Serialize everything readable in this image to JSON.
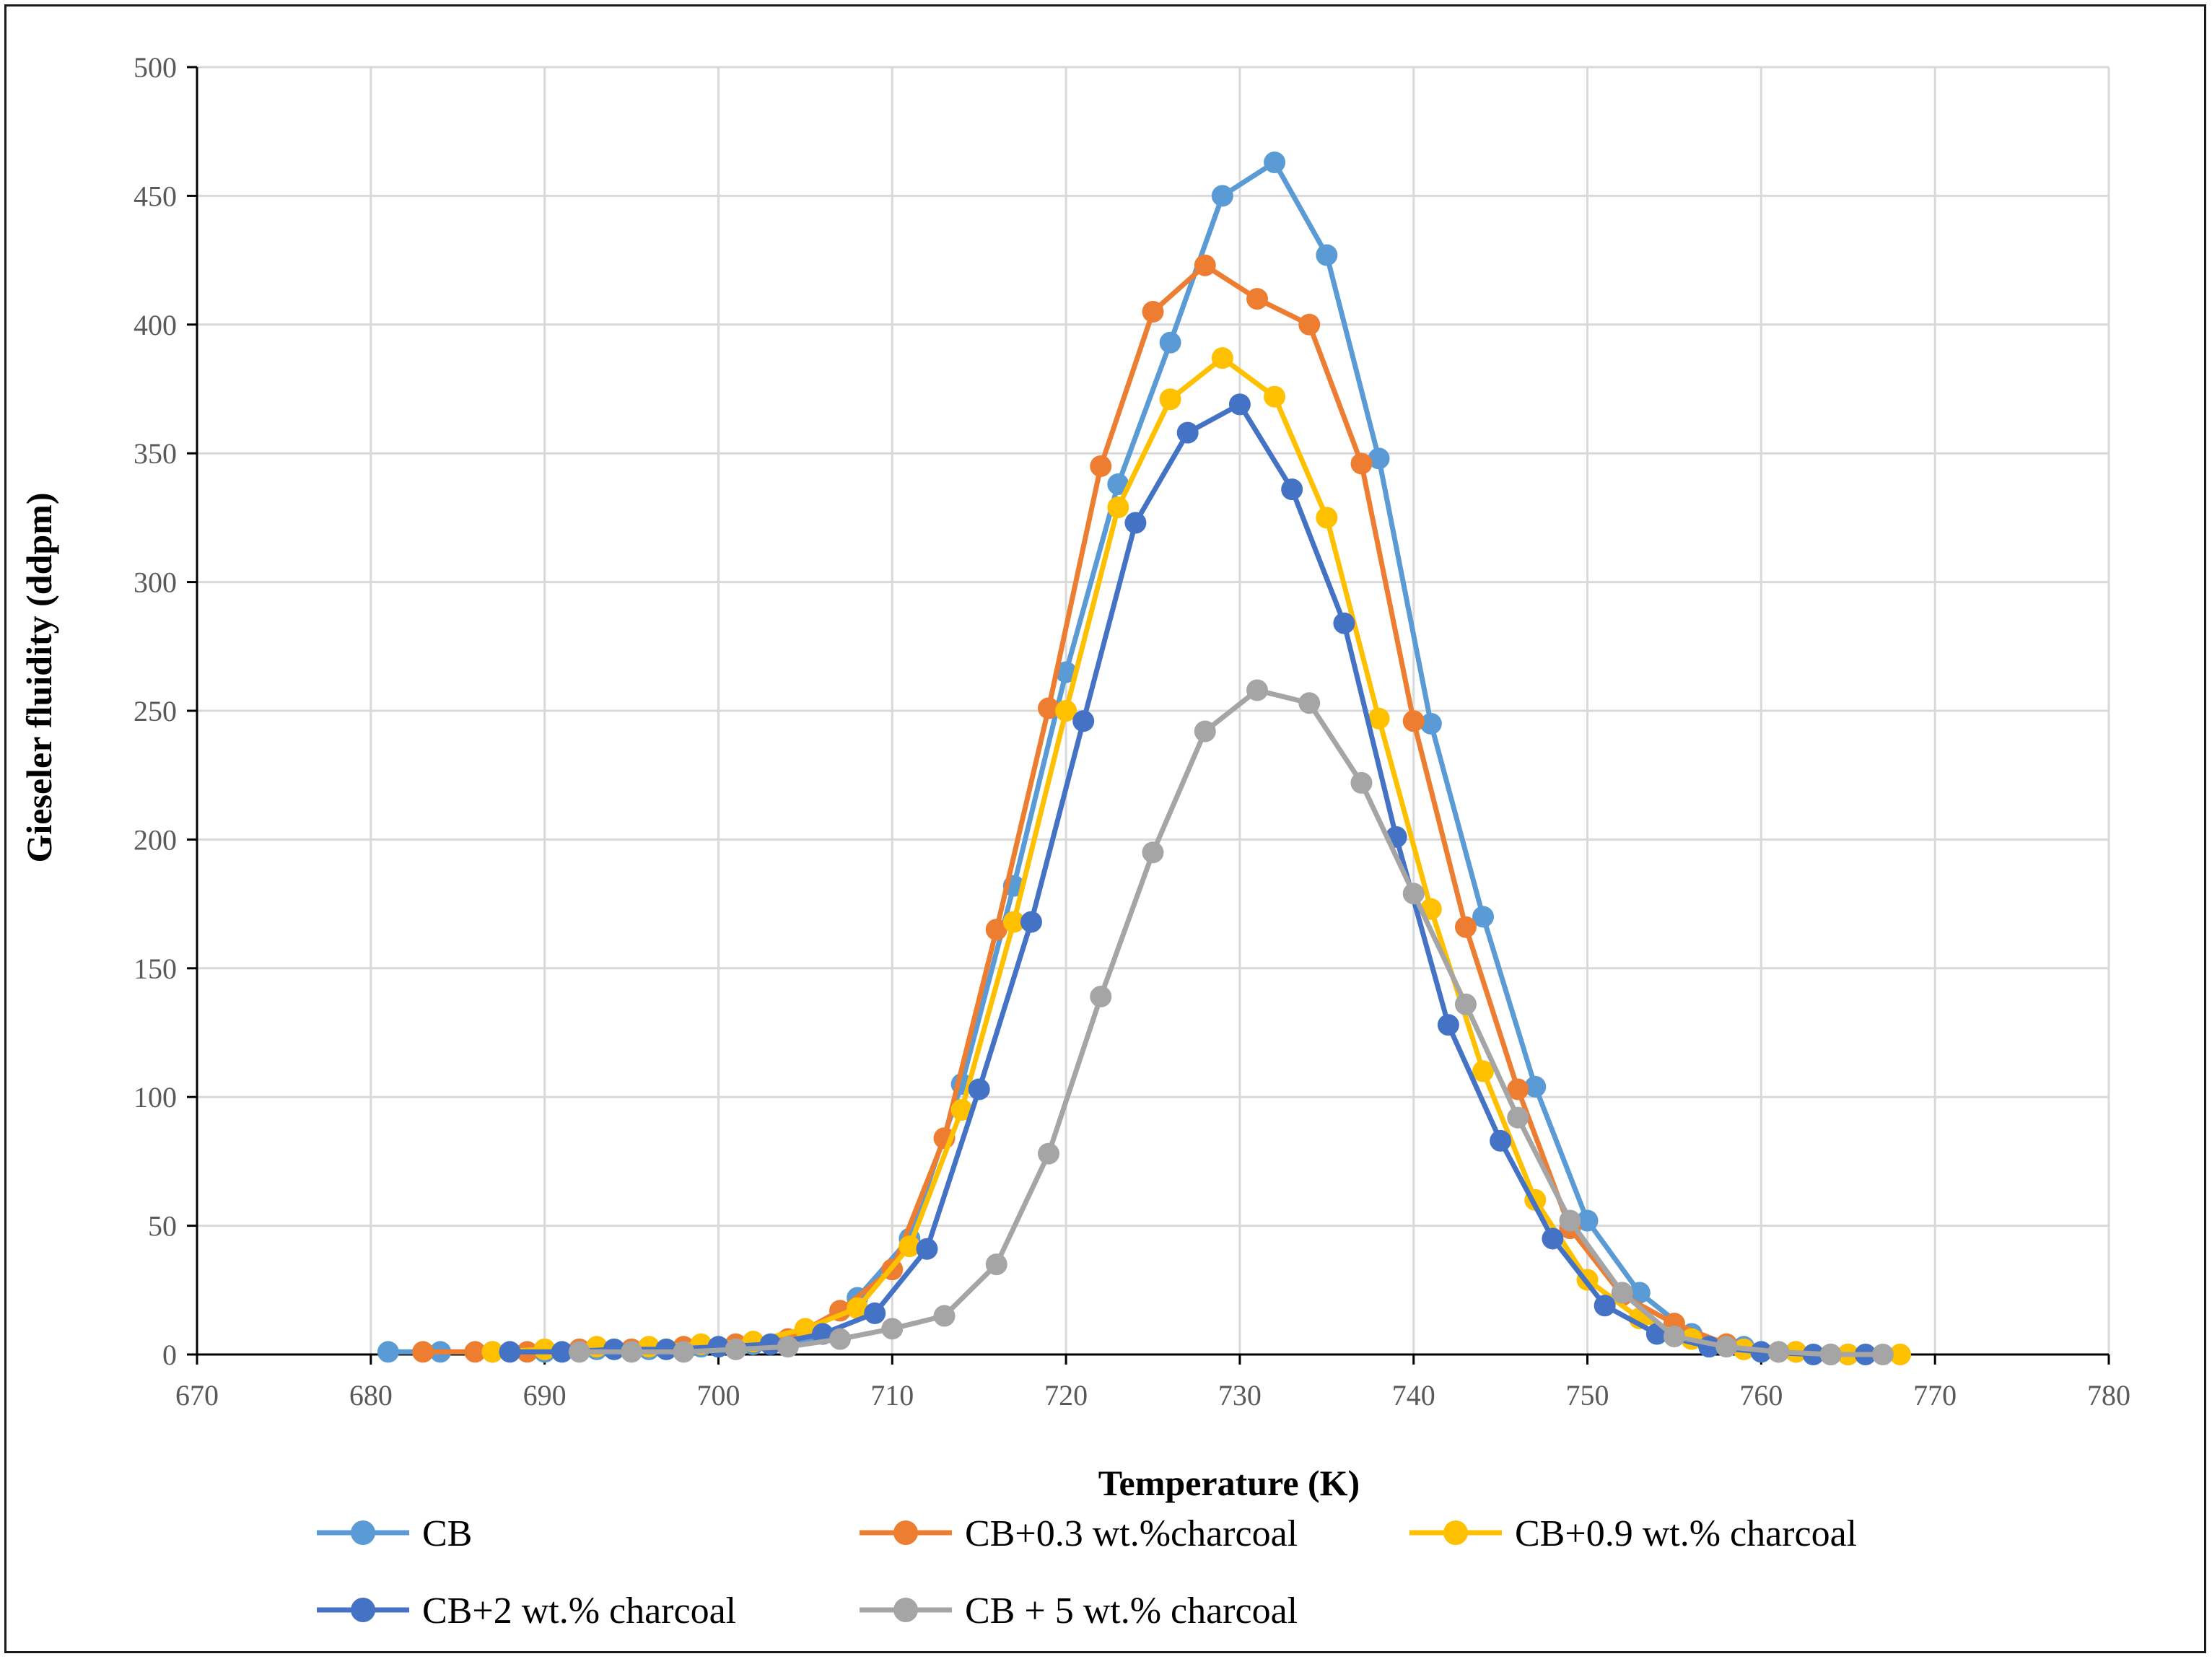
{
  "chart_data": {
    "type": "line",
    "title": "",
    "xlabel": "Temperature (K)",
    "ylabel": "Gieseler fluidity (ddpm)",
    "xlim": [
      670,
      780
    ],
    "ylim": [
      0,
      500
    ],
    "xticks": [
      670,
      680,
      690,
      700,
      710,
      720,
      730,
      740,
      750,
      760,
      770,
      780
    ],
    "yticks": [
      0,
      50,
      100,
      150,
      200,
      250,
      300,
      350,
      400,
      450,
      500
    ],
    "grid": true,
    "legend_position": "bottom",
    "series": [
      {
        "name": "CB",
        "color": "#5B9BD5",
        "x": [
          681,
          684,
          687,
          690,
          693,
          696,
          699,
          702,
          705,
          708,
          711,
          714,
          717,
          720,
          723,
          726,
          729,
          732,
          735,
          738,
          741,
          744,
          747,
          750,
          753,
          756,
          759,
          762,
          765
        ],
        "y": [
          1,
          1,
          1,
          1,
          2,
          2,
          3,
          4,
          8,
          22,
          45,
          105,
          182,
          265,
          338,
          393,
          450,
          463,
          427,
          348,
          245,
          170,
          104,
          52,
          24,
          8,
          3,
          1,
          0
        ]
      },
      {
        "name": "CB+0.3 wt.%charcoal",
        "color": "#ED7D31",
        "x": [
          683,
          686,
          689,
          692,
          695,
          698,
          701,
          704,
          707,
          710,
          713,
          716,
          719,
          722,
          725,
          728,
          731,
          734,
          737,
          740,
          743,
          746,
          749,
          752,
          755,
          758,
          761,
          764
        ],
        "y": [
          1,
          1,
          1,
          2,
          2,
          3,
          4,
          6,
          17,
          33,
          84,
          165,
          251,
          345,
          405,
          423,
          410,
          400,
          346,
          246,
          166,
          103,
          49,
          23,
          12,
          4,
          1,
          0
        ]
      },
      {
        "name": "CB+0.9 wt.% charcoal",
        "color": "#FFC000",
        "x": [
          687,
          690,
          693,
          696,
          699,
          702,
          705,
          708,
          711,
          714,
          717,
          720,
          723,
          726,
          729,
          732,
          735,
          738,
          741,
          744,
          747,
          750,
          753,
          756,
          759,
          762,
          765,
          768
        ],
        "y": [
          1,
          2,
          3,
          3,
          4,
          5,
          10,
          18,
          42,
          95,
          168,
          250,
          329,
          371,
          387,
          372,
          325,
          247,
          173,
          110,
          60,
          29,
          14,
          6,
          2,
          1,
          0,
          0
        ]
      },
      {
        "name": "CB+2 wt.% charcoal",
        "color": "#4472C4",
        "x": [
          688,
          691,
          694,
          697,
          700,
          703,
          706,
          709,
          712,
          715,
          718,
          721,
          724,
          727,
          730,
          733,
          736,
          739,
          742,
          745,
          748,
          751,
          754,
          757,
          760,
          763,
          766
        ],
        "y": [
          1,
          1,
          2,
          2,
          3,
          4,
          8,
          16,
          41,
          103,
          168,
          246,
          323,
          358,
          369,
          336,
          284,
          201,
          128,
          83,
          45,
          19,
          8,
          3,
          1,
          0,
          0
        ]
      },
      {
        "name": "CB + 5 wt.% charcoal",
        "color": "#A5A5A5",
        "x": [
          692,
          695,
          698,
          701,
          704,
          707,
          710,
          713,
          716,
          719,
          722,
          725,
          728,
          731,
          734,
          737,
          740,
          743,
          746,
          749,
          752,
          755,
          758,
          761,
          764,
          767
        ],
        "y": [
          1,
          1,
          1,
          2,
          3,
          6,
          10,
          15,
          35,
          78,
          139,
          195,
          242,
          258,
          253,
          222,
          179,
          136,
          92,
          52,
          24,
          7,
          3,
          1,
          0,
          0
        ]
      }
    ]
  }
}
